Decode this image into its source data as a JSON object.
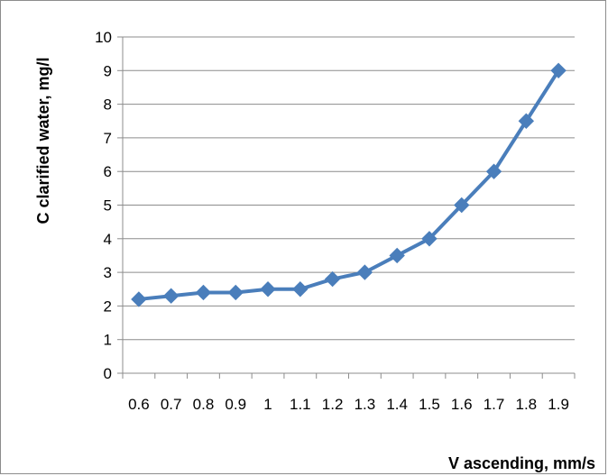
{
  "chart_data": {
    "type": "line",
    "title": "",
    "xlabel": "V ascending, mm/s",
    "ylabel": "C clarified water, mg/l",
    "categories": [
      "0.6",
      "0.7",
      "0.8",
      "0.9",
      "1",
      "1.1",
      "1.2",
      "1.3",
      "1.4",
      "1.5",
      "1.6",
      "1.7",
      "1.8",
      "1.9"
    ],
    "series": [
      {
        "values": [
          2.2,
          2.3,
          2.4,
          2.4,
          2.5,
          2.5,
          2.8,
          3.0,
          3.5,
          4.0,
          5.0,
          6.0,
          7.5,
          9.0
        ]
      }
    ],
    "ylim": [
      0,
      10
    ],
    "yticks": [
      0,
      1,
      2,
      3,
      4,
      5,
      6,
      7,
      8,
      9,
      10
    ],
    "grid": true,
    "legend": "none",
    "line_color": "#4a7ebb",
    "marker": "diamond"
  }
}
